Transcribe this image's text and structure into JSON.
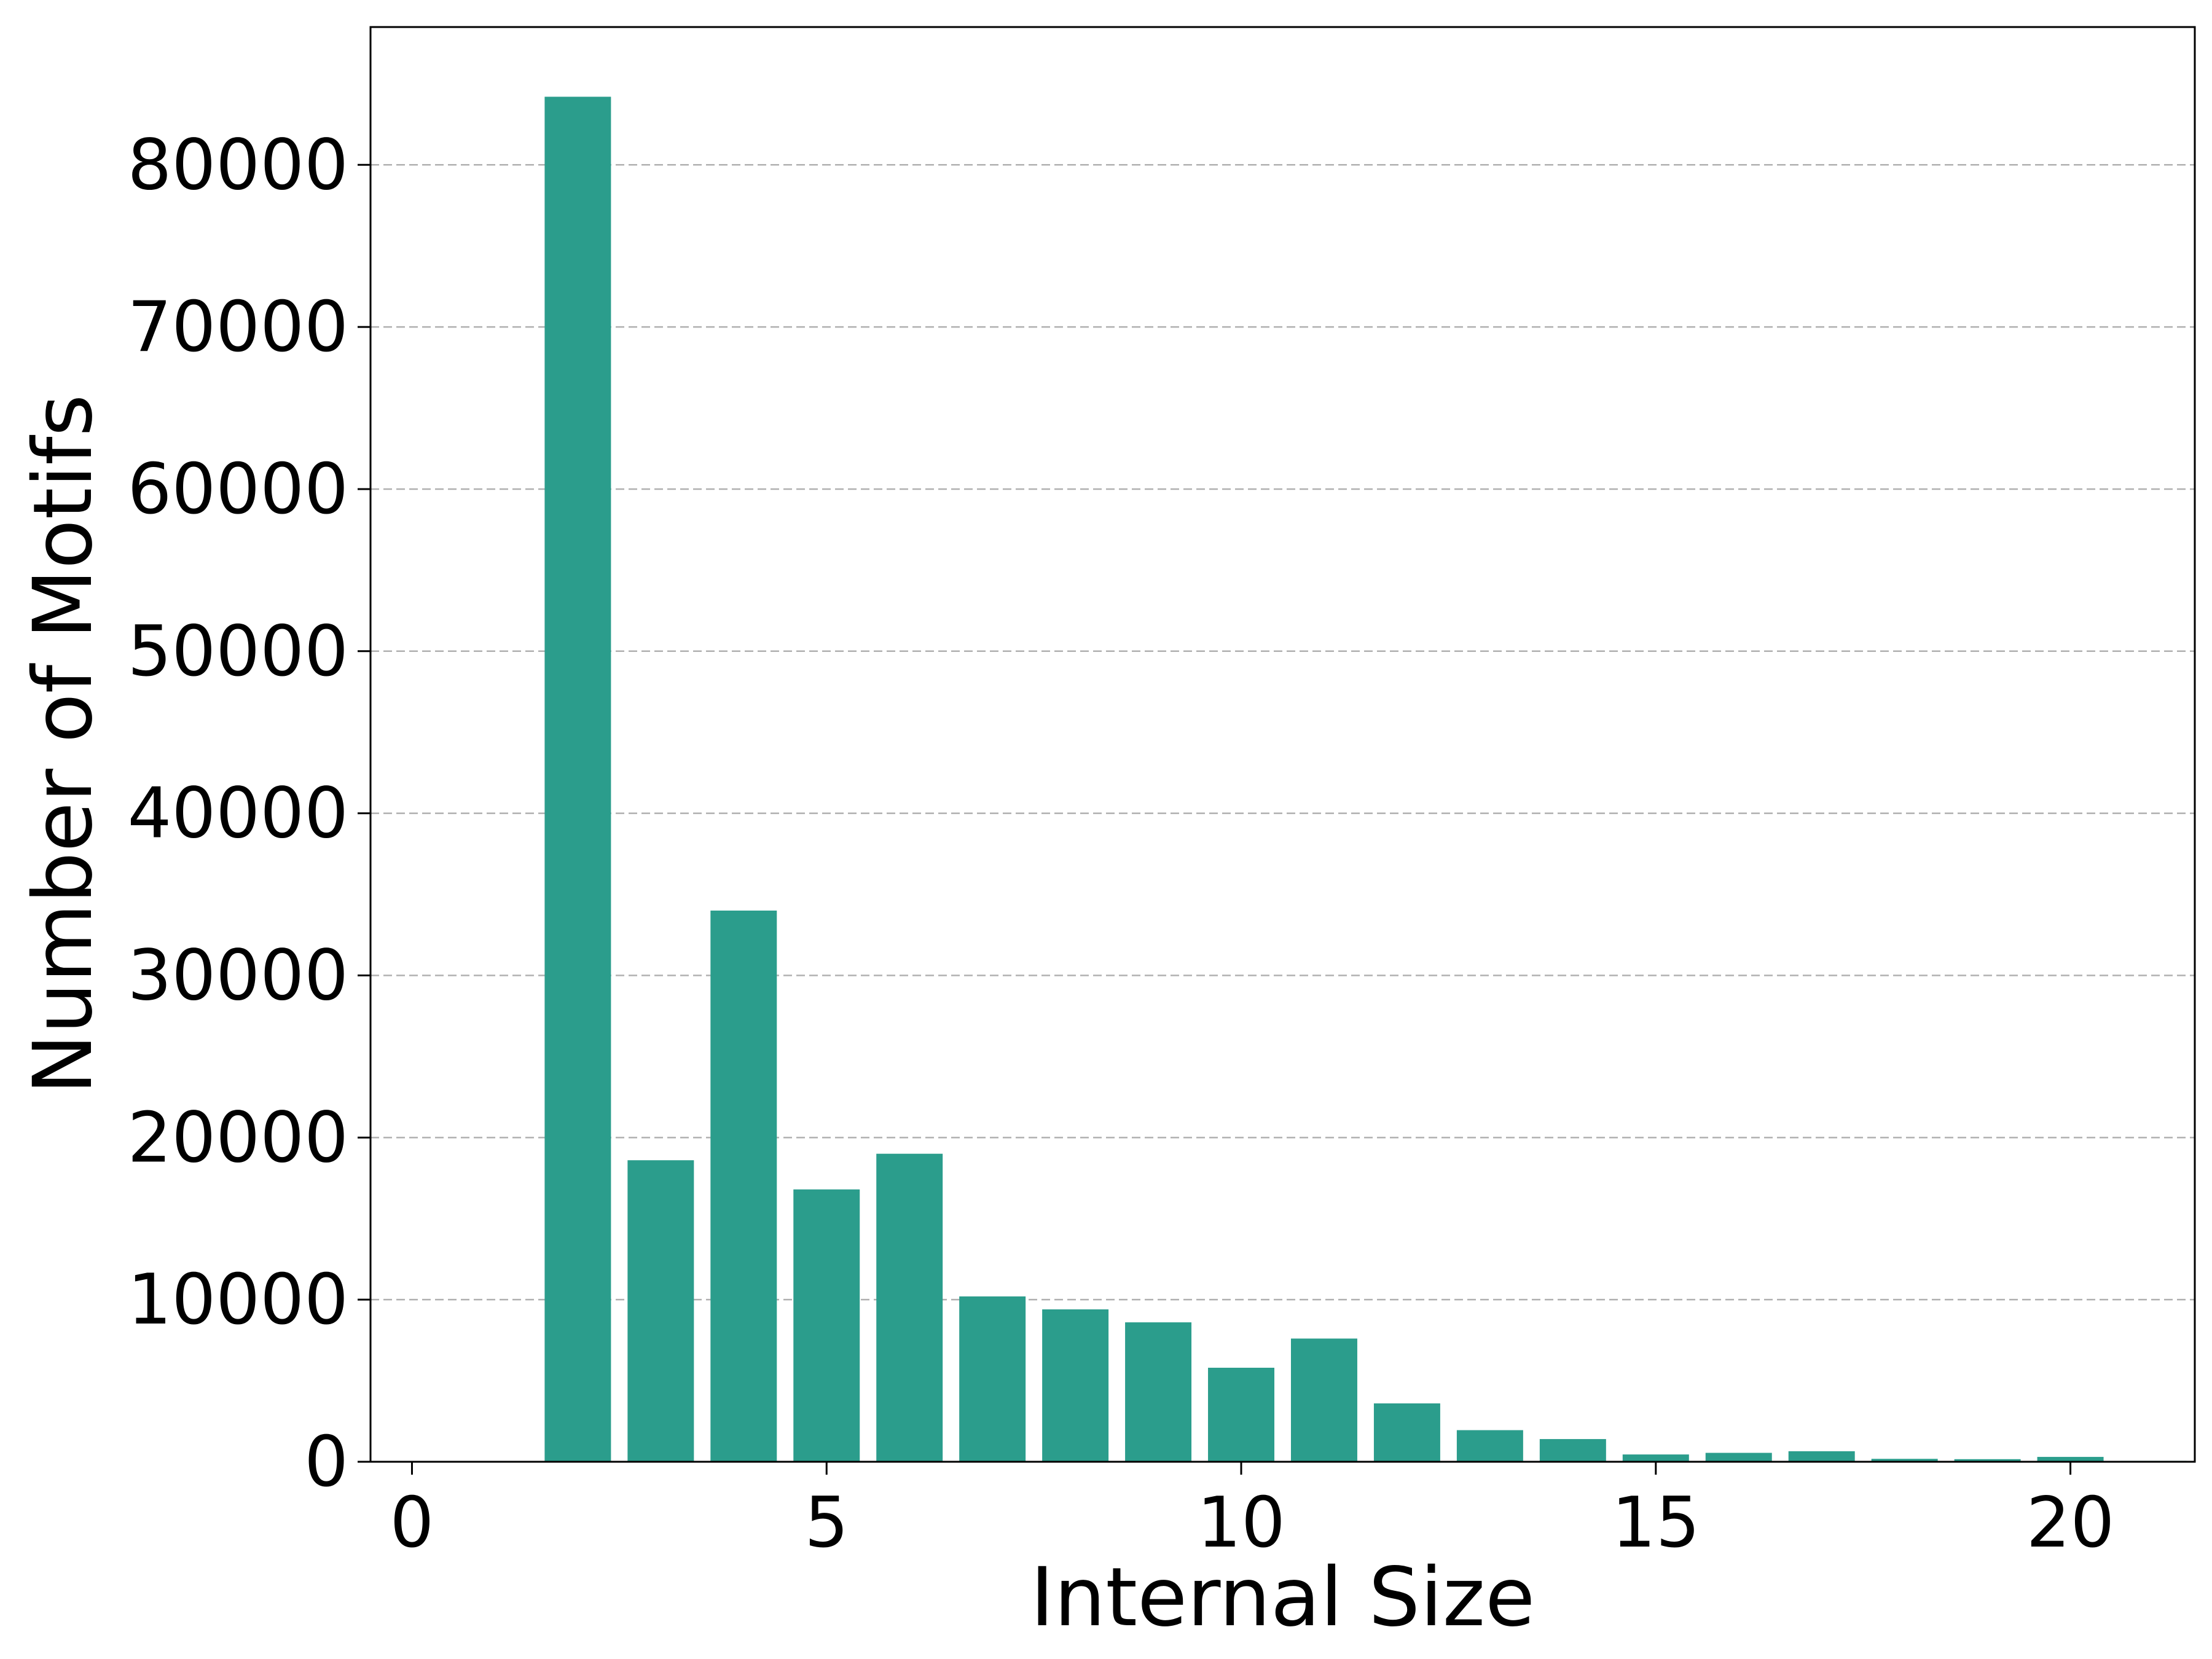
{
  "colors": {
    "bar": "#2b9d8c",
    "grid": "#b0b0b0",
    "axis": "#000000",
    "background": "#ffffff"
  },
  "chart_data": {
    "type": "bar",
    "title": "",
    "xlabel": "Internal Size",
    "ylabel": "Number of Motifs",
    "x": [
      2,
      3,
      4,
      5,
      6,
      7,
      8,
      9,
      10,
      11,
      12,
      13,
      14,
      15,
      16,
      17,
      18,
      19,
      20,
      21
    ],
    "values": [
      84200,
      18600,
      34000,
      16800,
      19000,
      10200,
      9400,
      8600,
      5800,
      7600,
      3600,
      1950,
      1400,
      450,
      550,
      650,
      180,
      160,
      300,
      60
    ],
    "xlim": [
      -0.5,
      21.5
    ],
    "ylim": [
      0,
      88500
    ],
    "xticks": [
      0,
      5,
      10,
      15,
      20
    ],
    "xtick_labels": [
      "0",
      "5",
      "10",
      "15",
      "20"
    ],
    "yticks": [
      0,
      10000,
      20000,
      30000,
      40000,
      50000,
      60000,
      70000,
      80000
    ],
    "ytick_labels": [
      "0",
      "10000",
      "20000",
      "30000",
      "40000",
      "50000",
      "60000",
      "70000",
      "80000"
    ],
    "grid": "y-dashed",
    "legend": "none"
  }
}
